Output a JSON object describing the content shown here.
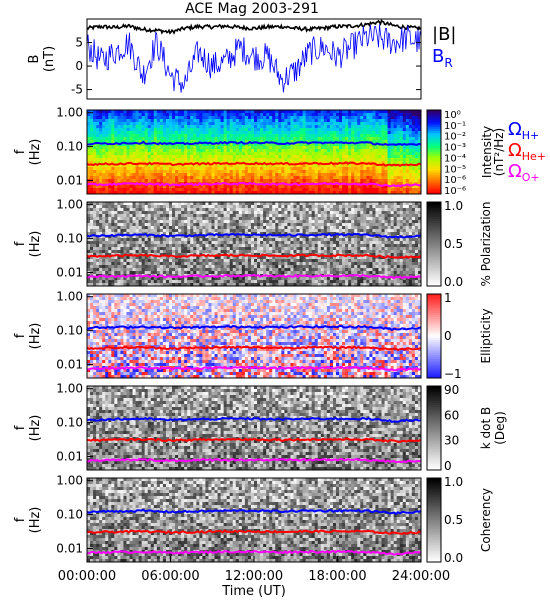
{
  "title": "ACE Mag 2003-291",
  "x_axis": {
    "label": "Time (UT)",
    "ticks": [
      "00:00:00",
      "06:00:00",
      "12:00:00",
      "18:00:00",
      "24:00:00"
    ],
    "tick_hours": [
      0,
      6,
      12,
      18,
      24
    ]
  },
  "legend": {
    "b_total": "|B|",
    "b_radial": {
      "main": "B",
      "sub": "R"
    },
    "gyro": [
      {
        "sub": "H+",
        "color": "#0000ff"
      },
      {
        "sub": "He+",
        "color": "#ff0000"
      },
      {
        "sub": "O+",
        "color": "#ff00ff"
      }
    ],
    "omega_symbol": "Ω"
  },
  "colors": {
    "b_total": "#000000",
    "b_radial": "#0000ff",
    "h_plus": "#0000ff",
    "he_plus": "#ff0000",
    "o_plus": "#ff00ff",
    "rainbow_table": [
      "#300068",
      "#0010ff",
      "#00c8ff",
      "#00ff80",
      "#a0ff00",
      "#ffe000",
      "#ff7000",
      "#ff0000"
    ],
    "diverging_table": [
      "#2020ff",
      "#ffffff",
      "#ff2020"
    ]
  },
  "panels": [
    {
      "id": "bfield",
      "ylabel": "B",
      "yunit": "(nT)",
      "yticks": [
        "5",
        "0",
        "-5"
      ]
    },
    {
      "id": "intensity",
      "ylabel": "f",
      "yunit": "(Hz)",
      "yticks": [
        "1.00",
        "0.10",
        "0.01"
      ],
      "colorbar": {
        "label": "Intensity",
        "unit": "(nT²/Hz)",
        "ticks": [
          "10⁰",
          "10⁻¹",
          "10⁻²",
          "10⁻³",
          "10⁻⁴",
          "10⁻⁵",
          "10⁻⁶",
          "10⁻⁶"
        ]
      }
    },
    {
      "id": "polarization",
      "ylabel": "f",
      "yunit": "(Hz)",
      "yticks": [
        "1.00",
        "0.10",
        "0.01"
      ],
      "colorbar": {
        "label": "% Polarization",
        "unit": "",
        "ticks": [
          "1.0",
          "0.5",
          "0.0"
        ]
      }
    },
    {
      "id": "ellipticity",
      "ylabel": "f",
      "yunit": "(Hz)",
      "yticks": [
        "1.00",
        "0.10",
        "0.01"
      ],
      "colorbar": {
        "label": "Ellipticity",
        "unit": "",
        "ticks": [
          "1",
          "0",
          "−1"
        ]
      }
    },
    {
      "id": "kdotb",
      "ylabel": "f",
      "yunit": "(Hz)",
      "yticks": [
        "1.00",
        "0.10",
        "0.01"
      ],
      "colorbar": {
        "label": "k dot B",
        "unit": "(Deg)",
        "ticks": [
          "90",
          "60",
          "30",
          "0"
        ]
      }
    },
    {
      "id": "coherency",
      "ylabel": "f",
      "yunit": "(Hz)",
      "yticks": [
        "1.00",
        "0.10",
        "0.01"
      ],
      "colorbar": {
        "label": "Coherency",
        "unit": "",
        "ticks": [
          "1.0",
          "0.5",
          "0.0"
        ]
      }
    }
  ],
  "chart_data": {
    "type": "spectrogram",
    "title": "ACE Mag 2003-291",
    "xlabel": "Time (UT)",
    "xlim_hours": [
      0,
      24
    ],
    "bfield": {
      "ylim_nT": [
        -7,
        10
      ],
      "series": [
        {
          "name": "|B|",
          "x_hours": [
            0,
            1,
            2,
            3,
            4,
            5,
            6,
            7,
            8,
            9,
            10,
            11,
            12,
            13,
            14,
            15,
            16,
            17,
            18,
            19,
            20,
            21,
            22,
            23,
            24
          ],
          "values": [
            8,
            8.4,
            8.2,
            8.5,
            7.8,
            7.6,
            7.2,
            8.0,
            8.4,
            8.3,
            8.5,
            8.2,
            8.0,
            8.3,
            8.4,
            8.0,
            7.8,
            8.1,
            8.4,
            8.5,
            8.8,
            9.4,
            8.6,
            8.2,
            8.0
          ]
        },
        {
          "name": "B_R",
          "x_hours": [
            0,
            1,
            2,
            3,
            4,
            5,
            6,
            7,
            8,
            9,
            10,
            11,
            12,
            13,
            14,
            15,
            16,
            17,
            18,
            19,
            20,
            21,
            22,
            23,
            24
          ],
          "values": [
            4.5,
            1,
            3,
            5,
            -2,
            5,
            -2,
            -4,
            3,
            0,
            1,
            4,
            2,
            2,
            -3,
            -1,
            3,
            4,
            2,
            4,
            6,
            6,
            5,
            6,
            5
          ]
        }
      ]
    },
    "spectral": {
      "freq_axis": "log",
      "ylim_hz": [
        0.004,
        1.2
      ],
      "gyrofrequencies": [
        {
          "name": "H+",
          "x_hours": [
            0,
            2,
            4,
            6,
            8,
            10,
            12,
            14,
            16,
            18,
            20,
            22,
            24
          ],
          "values_hz": [
            0.12,
            0.125,
            0.13,
            0.12,
            0.125,
            0.13,
            0.13,
            0.125,
            0.13,
            0.13,
            0.13,
            0.11,
            0.12
          ]
        },
        {
          "name": "He+",
          "x_hours": [
            0,
            2,
            4,
            6,
            8,
            10,
            12,
            14,
            16,
            18,
            20,
            22,
            24
          ],
          "values_hz": [
            0.03,
            0.031,
            0.032,
            0.03,
            0.031,
            0.032,
            0.032,
            0.031,
            0.032,
            0.032,
            0.032,
            0.028,
            0.03
          ]
        },
        {
          "name": "O+",
          "x_hours": [
            0,
            2,
            4,
            6,
            8,
            10,
            12,
            14,
            16,
            18,
            20,
            22,
            24
          ],
          "values_hz": [
            0.0075,
            0.0078,
            0.008,
            0.0075,
            0.0078,
            0.008,
            0.008,
            0.0078,
            0.008,
            0.008,
            0.008,
            0.007,
            0.0075
          ]
        }
      ]
    }
  }
}
